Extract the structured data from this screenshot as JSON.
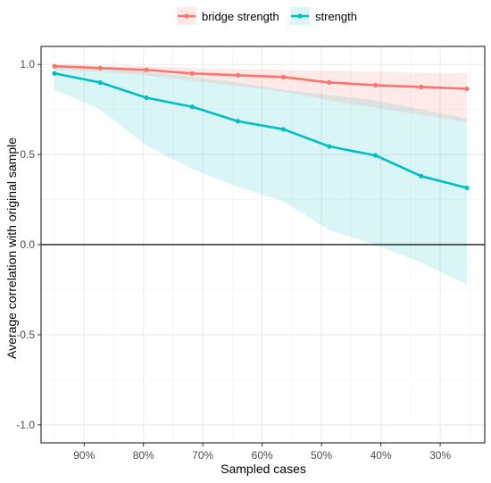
{
  "chart_data": {
    "type": "line",
    "title": "",
    "xlabel": "Sampled cases",
    "ylabel": "Average correlation with original sample",
    "x": [
      0.95,
      0.873,
      0.795,
      0.718,
      0.641,
      0.564,
      0.487,
      0.409,
      0.332,
      0.255
    ],
    "xlim": [
      0.255,
      0.95
    ],
    "x_ticks": [
      0.9,
      0.8,
      0.7,
      0.6,
      0.5,
      0.4,
      0.3
    ],
    "x_tick_labels": [
      "90%",
      "80%",
      "70%",
      "60%",
      "50%",
      "40%",
      "30%"
    ],
    "x_reversed": true,
    "ylim": [
      -1.1,
      1.1
    ],
    "y_ticks": [
      1.0,
      0.5,
      0.0,
      -0.5,
      -1.0
    ],
    "y_tick_labels": [
      "1.0",
      "0.5",
      "0.0",
      "-0.5",
      "-1.0"
    ],
    "hline": 0,
    "grid": true,
    "legend_position": "top",
    "series": [
      {
        "name": "bridge strength",
        "color": "#F8766D",
        "values": [
          0.99,
          0.98,
          0.97,
          0.95,
          0.94,
          0.93,
          0.9,
          0.885,
          0.875,
          0.865
        ],
        "lower": [
          0.97,
          0.96,
          0.94,
          0.91,
          0.88,
          0.85,
          0.8,
          0.76,
          0.72,
          0.68
        ],
        "upper": [
          1.0,
          0.995,
          0.99,
          0.98,
          0.975,
          0.97,
          0.965,
          0.96,
          0.955,
          0.95
        ]
      },
      {
        "name": "strength",
        "color": "#00BFC4",
        "values": [
          0.95,
          0.9,
          0.815,
          0.765,
          0.685,
          0.64,
          0.545,
          0.495,
          0.38,
          0.315
        ],
        "lower": [
          0.86,
          0.75,
          0.55,
          0.42,
          0.32,
          0.24,
          0.08,
          0.0,
          -0.1,
          -0.22
        ],
        "upper": [
          0.99,
          0.98,
          0.96,
          0.93,
          0.9,
          0.86,
          0.83,
          0.8,
          0.75,
          0.7
        ]
      }
    ]
  }
}
